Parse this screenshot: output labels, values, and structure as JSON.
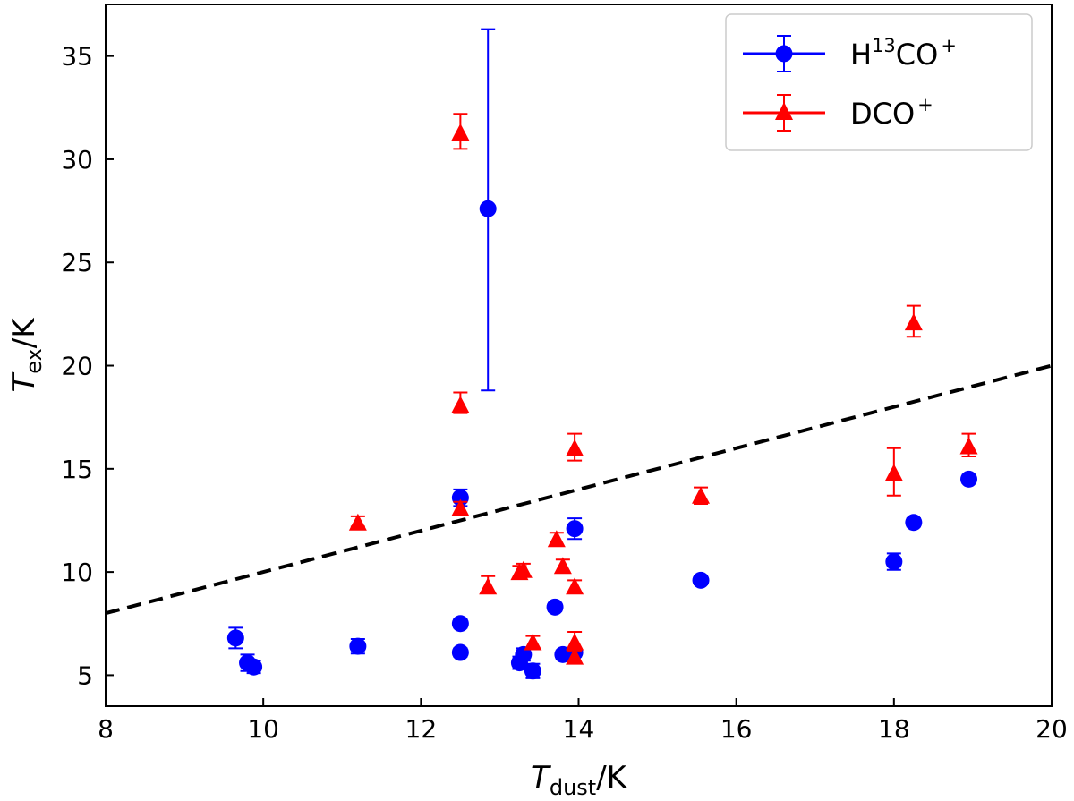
{
  "chart_data": {
    "type": "scatter",
    "xlabel": {
      "main": "T",
      "sub": "dust",
      "unit": "/K"
    },
    "ylabel": {
      "main": "T",
      "sub": "ex",
      "unit": "/K"
    },
    "xlim": [
      8,
      20
    ],
    "ylim": [
      3.5,
      37.5
    ],
    "xticks": [
      "8",
      "10",
      "12",
      "14",
      "16",
      "18",
      "20"
    ],
    "yticks": [
      "5",
      "10",
      "15",
      "20",
      "25",
      "30",
      "35"
    ],
    "grid": false,
    "legend_position": "top-right",
    "reference_line": {
      "style": "dashed",
      "color": "#000000",
      "x": [
        8,
        20
      ],
      "y": [
        8,
        20
      ]
    },
    "series": [
      {
        "name": "H¹³CO⁺",
        "legend": {
          "base": "H",
          "sup1": "13",
          "mid": "CO",
          "sup2": "+"
        },
        "marker": "circle",
        "color": "#0000ff",
        "points": [
          {
            "x": 9.65,
            "y": 6.8,
            "lo": 6.3,
            "hi": 7.3
          },
          {
            "x": 9.8,
            "y": 5.6,
            "lo": 5.2,
            "hi": 6.0
          },
          {
            "x": 9.88,
            "y": 5.4,
            "lo": 5.1,
            "hi": 5.7
          },
          {
            "x": 11.2,
            "y": 6.4,
            "lo": 6.05,
            "hi": 6.75
          },
          {
            "x": 12.5,
            "y": 13.6,
            "lo": 13.2,
            "hi": 14.0
          },
          {
            "x": 12.5,
            "y": 7.5,
            "lo": 7.3,
            "hi": 7.7
          },
          {
            "x": 12.5,
            "y": 6.1,
            "lo": 5.9,
            "hi": 6.3
          },
          {
            "x": 12.85,
            "y": 27.6,
            "lo": 18.8,
            "hi": 36.3
          },
          {
            "x": 13.25,
            "y": 5.6,
            "lo": 5.3,
            "hi": 5.9
          },
          {
            "x": 13.3,
            "y": 6.0,
            "lo": 5.7,
            "hi": 6.3
          },
          {
            "x": 13.42,
            "y": 5.2,
            "lo": 4.85,
            "hi": 5.55
          },
          {
            "x": 13.7,
            "y": 8.3,
            "lo": 8.1,
            "hi": 8.5
          },
          {
            "x": 13.8,
            "y": 6.0,
            "lo": 5.8,
            "hi": 6.2
          },
          {
            "x": 13.95,
            "y": 12.1,
            "lo": 11.6,
            "hi": 12.6
          },
          {
            "x": 13.95,
            "y": 6.1,
            "lo": 5.9,
            "hi": 6.3
          },
          {
            "x": 15.55,
            "y": 9.6,
            "lo": 9.4,
            "hi": 9.8
          },
          {
            "x": 18.0,
            "y": 10.5,
            "lo": 10.1,
            "hi": 10.9
          },
          {
            "x": 18.25,
            "y": 12.4,
            "lo": 12.2,
            "hi": 12.6
          },
          {
            "x": 18.95,
            "y": 14.5,
            "lo": 14.3,
            "hi": 14.7
          }
        ]
      },
      {
        "name": "DCO⁺",
        "legend": {
          "base": "DCO",
          "sup1": "",
          "mid": "",
          "sup2": "+"
        },
        "marker": "triangle",
        "color": "#ff0000",
        "points": [
          {
            "x": 11.2,
            "y": 12.4,
            "lo": 12.2,
            "hi": 12.7
          },
          {
            "x": 12.5,
            "y": 31.3,
            "lo": 30.5,
            "hi": 32.2
          },
          {
            "x": 12.5,
            "y": 18.1,
            "lo": 17.7,
            "hi": 18.7
          },
          {
            "x": 12.5,
            "y": 13.1,
            "lo": 12.8,
            "hi": 13.4
          },
          {
            "x": 12.85,
            "y": 9.3,
            "lo": 9.0,
            "hi": 9.8
          },
          {
            "x": 13.25,
            "y": 10.0,
            "lo": 9.7,
            "hi": 10.3
          },
          {
            "x": 13.3,
            "y": 10.1,
            "lo": 9.8,
            "hi": 10.4
          },
          {
            "x": 13.42,
            "y": 6.6,
            "lo": 6.3,
            "hi": 6.9
          },
          {
            "x": 13.72,
            "y": 11.6,
            "lo": 11.3,
            "hi": 11.9
          },
          {
            "x": 13.8,
            "y": 10.3,
            "lo": 10.0,
            "hi": 10.6
          },
          {
            "x": 13.95,
            "y": 16.0,
            "lo": 15.4,
            "hi": 16.7
          },
          {
            "x": 13.95,
            "y": 9.3,
            "lo": 9.0,
            "hi": 9.6
          },
          {
            "x": 13.95,
            "y": 6.6,
            "lo": 6.2,
            "hi": 7.1
          },
          {
            "x": 13.95,
            "y": 5.9,
            "lo": 5.6,
            "hi": 6.2
          },
          {
            "x": 15.55,
            "y": 13.7,
            "lo": 13.3,
            "hi": 14.1
          },
          {
            "x": 18.0,
            "y": 14.8,
            "lo": 13.7,
            "hi": 16.0
          },
          {
            "x": 18.25,
            "y": 22.1,
            "lo": 21.4,
            "hi": 22.9
          },
          {
            "x": 18.95,
            "y": 16.1,
            "lo": 15.6,
            "hi": 16.7
          }
        ]
      }
    ]
  }
}
